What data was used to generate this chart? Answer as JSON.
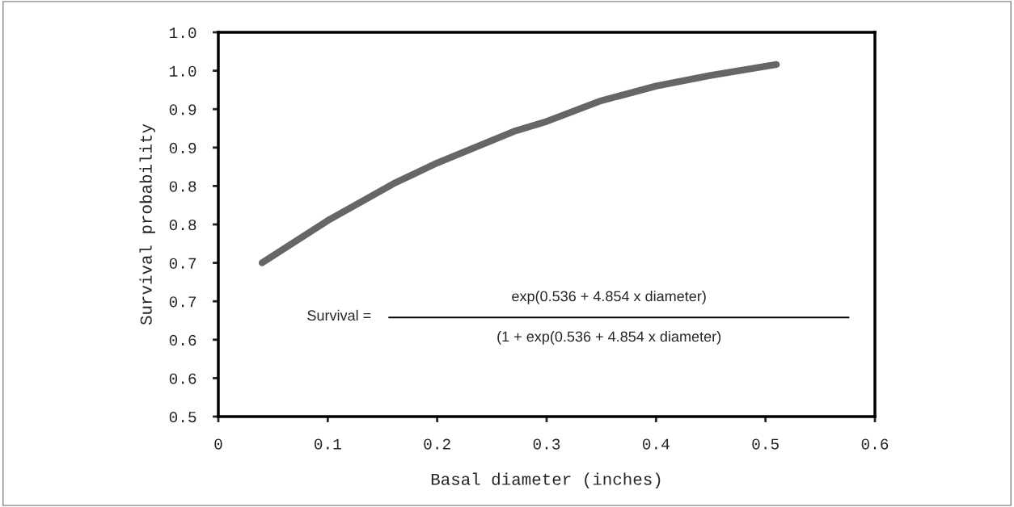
{
  "chart_data": {
    "type": "line",
    "xlabel": "Basal diameter (inches)",
    "ylabel": "Survival probability",
    "x": [
      0.04,
      0.1,
      0.16,
      0.2,
      0.27,
      0.3,
      0.35,
      0.4,
      0.45,
      0.51
    ],
    "series": [
      {
        "color": "#666666",
        "values": [
          0.7,
          0.755,
          0.803,
          0.83,
          0.871,
          0.884,
          0.911,
          0.93,
          0.944,
          0.958
        ]
      }
    ],
    "xlim": [
      0,
      0.6
    ],
    "xticks": [
      {
        "value": 0,
        "label": "0"
      },
      0.1,
      0.2,
      0.3,
      0.4,
      0.5,
      0.6
    ],
    "ylim": [
      0.5,
      1.0
    ],
    "yticks": [
      0.5,
      {
        "value": 0.55,
        "label": "0.6"
      },
      0.6,
      {
        "value": 0.65,
        "label": "0.7"
      },
      0.7,
      {
        "value": 0.75,
        "label": "0.8"
      },
      0.8,
      {
        "value": 0.85,
        "label": "0.9"
      },
      0.9,
      {
        "value": 0.95,
        "label": "1.0"
      },
      {
        "value": 1.0,
        "label": "1.0"
      }
    ],
    "annotations": [
      "Survival =",
      "exp(0.536 + 4.854 x diameter)",
      "(1 + exp(0.536 + 4.854 x diameter)"
    ],
    "grid": false,
    "legend": false,
    "marker": "none",
    "line_style": "solid"
  }
}
